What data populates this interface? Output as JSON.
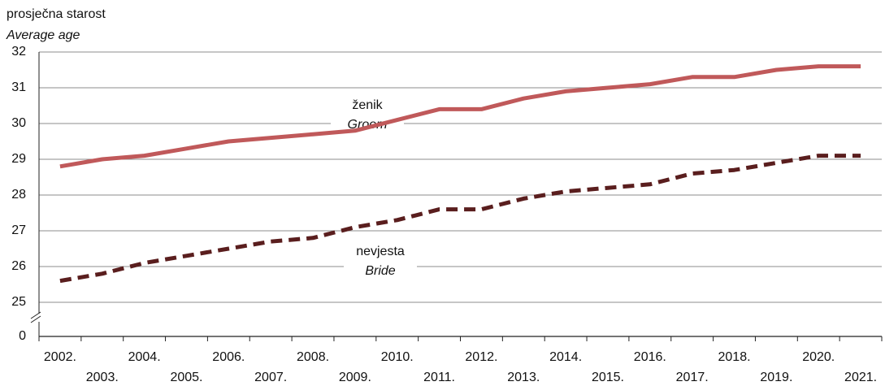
{
  "chart_data": {
    "type": "line",
    "title": "prosječna starost",
    "subtitle": "Average age",
    "categories": [
      "2002.",
      "2003.",
      "2004.",
      "2005.",
      "2006.",
      "2007.",
      "2008.",
      "2009.",
      "2010.",
      "2011.",
      "2012.",
      "2013.",
      "2014.",
      "2015.",
      "2016.",
      "2017.",
      "2018.",
      "2019.",
      "2020.",
      "2021."
    ],
    "series": [
      {
        "name": "ženik",
        "name_en": "Groom",
        "color": "#c0595a",
        "dashed": false,
        "values": [
          28.8,
          29.0,
          29.1,
          29.3,
          29.5,
          29.6,
          29.7,
          29.8,
          30.1,
          30.4,
          30.4,
          30.7,
          30.9,
          31.0,
          31.1,
          31.3,
          31.3,
          31.5,
          31.6,
          31.6
        ]
      },
      {
        "name": "nevjesta",
        "name_en": "Bride",
        "color": "#5a1e1e",
        "dashed": true,
        "values": [
          25.6,
          25.8,
          26.1,
          26.3,
          26.5,
          26.7,
          26.8,
          27.1,
          27.3,
          27.6,
          27.6,
          27.9,
          28.1,
          28.2,
          28.3,
          28.6,
          28.7,
          28.9,
          29.1,
          29.1
        ]
      }
    ],
    "ylim": [
      25,
      32
    ],
    "yticks": [
      0,
      25,
      26,
      27,
      28,
      29,
      30,
      31,
      32
    ],
    "axis_break": true,
    "grid": true
  }
}
